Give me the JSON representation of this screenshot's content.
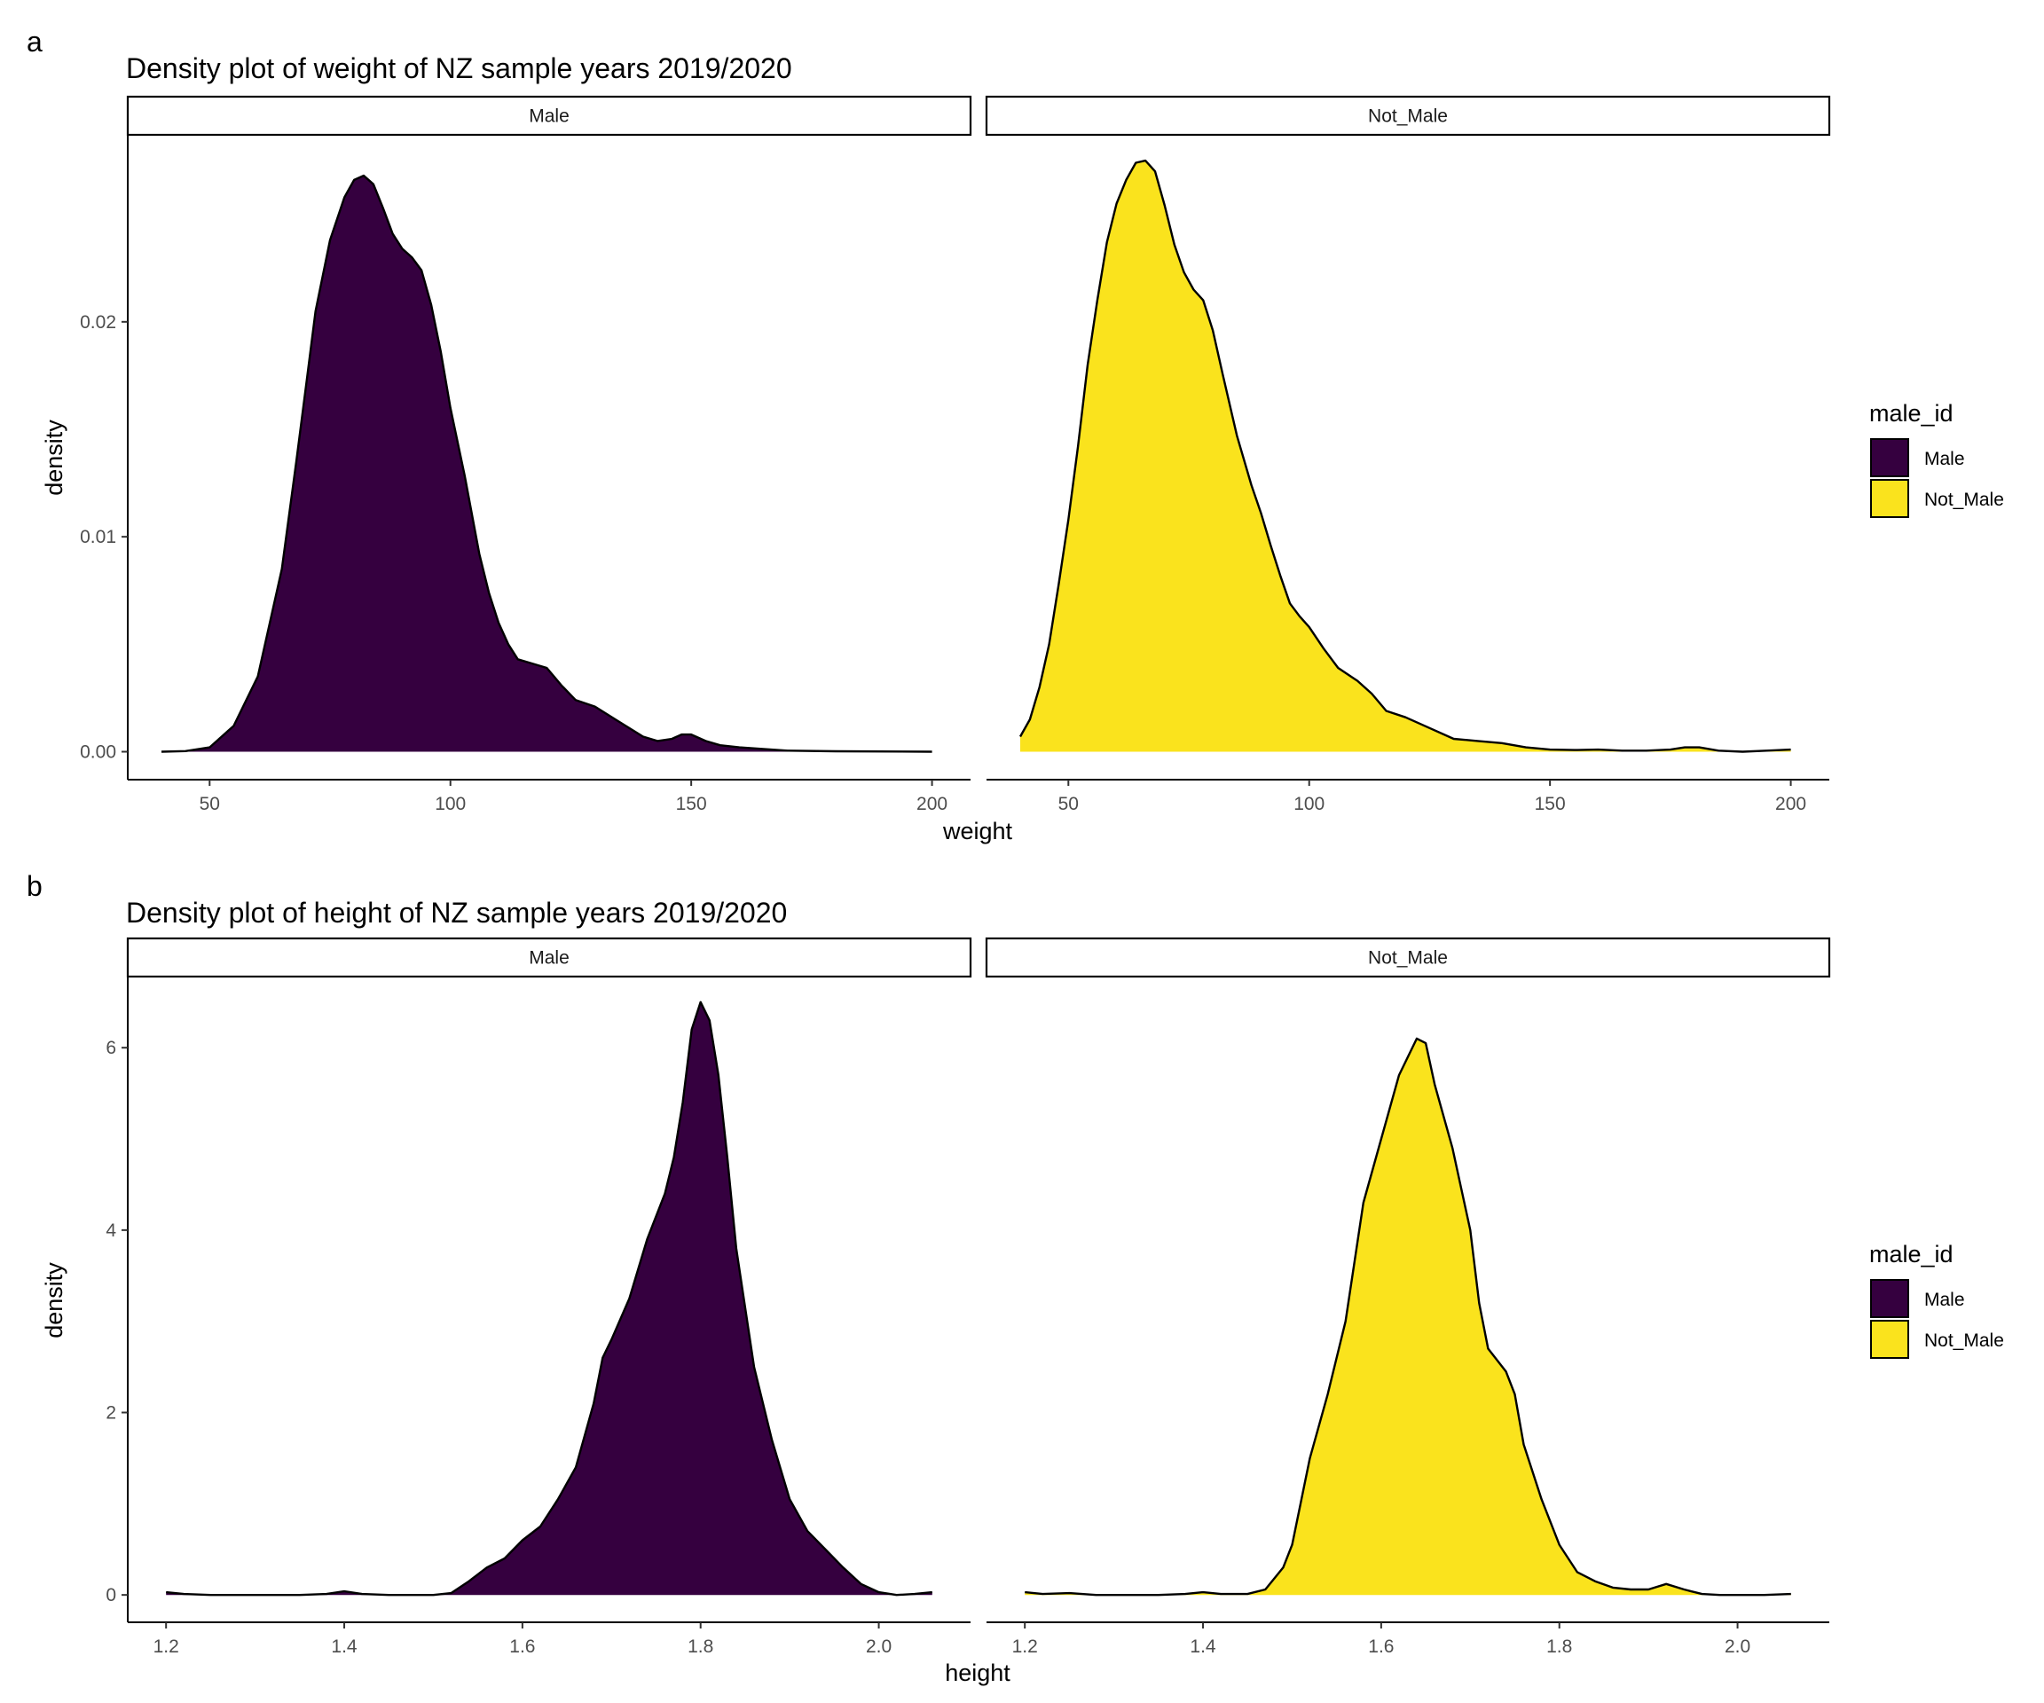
{
  "figure": {
    "panel_a_tag": "a",
    "panel_b_tag": "b"
  },
  "colors": {
    "Male": "#35003f",
    "Not_Male": "#fae31d"
  },
  "chart_data": [
    {
      "type": "area",
      "title": "Density plot of weight of NZ sample years 2019/2020",
      "xlabel": "weight",
      "ylabel": "density",
      "facets": [
        "Male",
        "Not_Male"
      ],
      "xlim": [
        33,
        208
      ],
      "ylim": [
        -0.0013,
        0.0287
      ],
      "x_ticks": [
        50,
        100,
        150,
        200
      ],
      "y_ticks": [
        0.0,
        0.01,
        0.02
      ],
      "y_tick_labels": [
        "0.00",
        "0.01",
        "0.02"
      ],
      "legend": {
        "title": "male_id",
        "entries": [
          "Male",
          "Not_Male"
        ],
        "position": "right"
      },
      "grid": false,
      "series": [
        {
          "name": "Male",
          "points": [
            [
              40,
              0
            ],
            [
              45,
              3e-05
            ],
            [
              50,
              0.0002
            ],
            [
              55,
              0.0012
            ],
            [
              60,
              0.0035
            ],
            [
              65,
              0.0085
            ],
            [
              68,
              0.0135
            ],
            [
              70,
              0.017
            ],
            [
              72,
              0.0205
            ],
            [
              75,
              0.0238
            ],
            [
              78,
              0.0258
            ],
            [
              80,
              0.0266
            ],
            [
              82,
              0.0268
            ],
            [
              84,
              0.0264
            ],
            [
              86,
              0.0253
            ],
            [
              88,
              0.0241
            ],
            [
              90,
              0.0234
            ],
            [
              92,
              0.023
            ],
            [
              94,
              0.0224
            ],
            [
              96,
              0.0208
            ],
            [
              98,
              0.0186
            ],
            [
              100,
              0.016
            ],
            [
              103,
              0.0128
            ],
            [
              106,
              0.0092
            ],
            [
              108,
              0.0074
            ],
            [
              110,
              0.006
            ],
            [
              112,
              0.005
            ],
            [
              114,
              0.0043
            ],
            [
              117,
              0.0041
            ],
            [
              120,
              0.0039
            ],
            [
              123,
              0.0031
            ],
            [
              126,
              0.0024
            ],
            [
              130,
              0.0021
            ],
            [
              135,
              0.0014
            ],
            [
              140,
              0.0007
            ],
            [
              143,
              0.0005
            ],
            [
              146,
              0.0006
            ],
            [
              148,
              0.0008
            ],
            [
              150,
              0.0008
            ],
            [
              153,
              0.0005
            ],
            [
              156,
              0.0003
            ],
            [
              160,
              0.0002
            ],
            [
              170,
              5e-05
            ],
            [
              180,
              2e-05
            ],
            [
              200,
              0
            ]
          ]
        },
        {
          "name": "Not_Male",
          "points": [
            [
              40,
              0.0007
            ],
            [
              42,
              0.0015
            ],
            [
              44,
              0.003
            ],
            [
              46,
              0.005
            ],
            [
              48,
              0.0078
            ],
            [
              50,
              0.0108
            ],
            [
              52,
              0.0142
            ],
            [
              54,
              0.018
            ],
            [
              56,
              0.021
            ],
            [
              58,
              0.0237
            ],
            [
              60,
              0.0255
            ],
            [
              62,
              0.0266
            ],
            [
              64,
              0.0274
            ],
            [
              66,
              0.0275
            ],
            [
              68,
              0.027
            ],
            [
              70,
              0.0254
            ],
            [
              72,
              0.0236
            ],
            [
              74,
              0.0223
            ],
            [
              76,
              0.0215
            ],
            [
              78,
              0.021
            ],
            [
              80,
              0.0196
            ],
            [
              82,
              0.0176
            ],
            [
              85,
              0.0147
            ],
            [
              88,
              0.0124
            ],
            [
              90,
              0.0111
            ],
            [
              92,
              0.0096
            ],
            [
              94,
              0.0082
            ],
            [
              96,
              0.0069
            ],
            [
              98,
              0.0063
            ],
            [
              100,
              0.0058
            ],
            [
              103,
              0.0048
            ],
            [
              106,
              0.0039
            ],
            [
              108,
              0.0036
            ],
            [
              110,
              0.0033
            ],
            [
              113,
              0.0027
            ],
            [
              116,
              0.0019
            ],
            [
              120,
              0.0016
            ],
            [
              125,
              0.0011
            ],
            [
              130,
              0.0006
            ],
            [
              135,
              0.0005
            ],
            [
              140,
              0.0004
            ],
            [
              145,
              0.0002
            ],
            [
              150,
              0.0001
            ],
            [
              155,
              8e-05
            ],
            [
              160,
              0.0001
            ],
            [
              165,
              5e-05
            ],
            [
              170,
              5e-05
            ],
            [
              175,
              0.0001
            ],
            [
              178,
              0.0002
            ],
            [
              181,
              0.0002
            ],
            [
              185,
              5e-05
            ],
            [
              190,
              0
            ],
            [
              195,
              5e-05
            ],
            [
              200,
              0.0001
            ]
          ]
        }
      ]
    },
    {
      "type": "area",
      "title": "Density plot of height of NZ sample years 2019/2020",
      "xlabel": "height",
      "ylabel": "density",
      "facets": [
        "Male",
        "Not_Male"
      ],
      "xlim": [
        1.157,
        2.103
      ],
      "ylim": [
        -0.3,
        6.78
      ],
      "x_ticks": [
        1.2,
        1.4,
        1.6,
        1.8,
        2.0
      ],
      "x_tick_labels": [
        "1.2",
        "1.4",
        "1.6",
        "1.8",
        "2.0"
      ],
      "y_ticks": [
        0,
        2,
        4,
        6
      ],
      "y_tick_labels": [
        "0",
        "2",
        "4",
        "6"
      ],
      "legend": {
        "title": "male_id",
        "entries": [
          "Male",
          "Not_Male"
        ],
        "position": "right"
      },
      "grid": false,
      "series": [
        {
          "name": "Male",
          "points": [
            [
              1.2,
              0.03
            ],
            [
              1.22,
              0.01
            ],
            [
              1.25,
              0
            ],
            [
              1.3,
              0
            ],
            [
              1.35,
              0
            ],
            [
              1.38,
              0.01
            ],
            [
              1.4,
              0.04
            ],
            [
              1.42,
              0.01
            ],
            [
              1.45,
              0
            ],
            [
              1.5,
              0
            ],
            [
              1.52,
              0.02
            ],
            [
              1.54,
              0.15
            ],
            [
              1.56,
              0.3
            ],
            [
              1.58,
              0.4
            ],
            [
              1.6,
              0.6
            ],
            [
              1.62,
              0.75
            ],
            [
              1.64,
              1.05
            ],
            [
              1.66,
              1.4
            ],
            [
              1.68,
              2.1
            ],
            [
              1.69,
              2.6
            ],
            [
              1.7,
              2.8
            ],
            [
              1.72,
              3.25
            ],
            [
              1.74,
              3.9
            ],
            [
              1.76,
              4.4
            ],
            [
              1.77,
              4.8
            ],
            [
              1.78,
              5.4
            ],
            [
              1.79,
              6.2
            ],
            [
              1.8,
              6.5
            ],
            [
              1.81,
              6.3
            ],
            [
              1.82,
              5.7
            ],
            [
              1.83,
              4.8
            ],
            [
              1.84,
              3.8
            ],
            [
              1.86,
              2.5
            ],
            [
              1.88,
              1.7
            ],
            [
              1.9,
              1.05
            ],
            [
              1.92,
              0.7
            ],
            [
              1.94,
              0.5
            ],
            [
              1.96,
              0.3
            ],
            [
              1.98,
              0.12
            ],
            [
              2.0,
              0.03
            ],
            [
              2.02,
              0
            ],
            [
              2.04,
              0.01
            ],
            [
              2.06,
              0.03
            ]
          ]
        },
        {
          "name": "Not_Male",
          "points": [
            [
              1.2,
              0.03
            ],
            [
              1.22,
              0.01
            ],
            [
              1.25,
              0.02
            ],
            [
              1.28,
              0
            ],
            [
              1.3,
              0
            ],
            [
              1.35,
              0
            ],
            [
              1.38,
              0.01
            ],
            [
              1.4,
              0.03
            ],
            [
              1.42,
              0.01
            ],
            [
              1.45,
              0.01
            ],
            [
              1.47,
              0.06
            ],
            [
              1.49,
              0.3
            ],
            [
              1.5,
              0.55
            ],
            [
              1.52,
              1.5
            ],
            [
              1.54,
              2.2
            ],
            [
              1.56,
              3.0
            ],
            [
              1.58,
              4.3
            ],
            [
              1.6,
              5.0
            ],
            [
              1.62,
              5.7
            ],
            [
              1.64,
              6.1
            ],
            [
              1.65,
              6.05
            ],
            [
              1.66,
              5.6
            ],
            [
              1.68,
              4.9
            ],
            [
              1.7,
              4.0
            ],
            [
              1.71,
              3.2
            ],
            [
              1.72,
              2.7
            ],
            [
              1.74,
              2.45
            ],
            [
              1.75,
              2.2
            ],
            [
              1.76,
              1.65
            ],
            [
              1.78,
              1.05
            ],
            [
              1.8,
              0.55
            ],
            [
              1.82,
              0.25
            ],
            [
              1.84,
              0.15
            ],
            [
              1.86,
              0.08
            ],
            [
              1.88,
              0.06
            ],
            [
              1.9,
              0.06
            ],
            [
              1.92,
              0.12
            ],
            [
              1.94,
              0.06
            ],
            [
              1.96,
              0.01
            ],
            [
              1.98,
              0
            ],
            [
              2.0,
              0
            ],
            [
              2.03,
              0
            ],
            [
              2.06,
              0.01
            ]
          ]
        }
      ]
    }
  ]
}
